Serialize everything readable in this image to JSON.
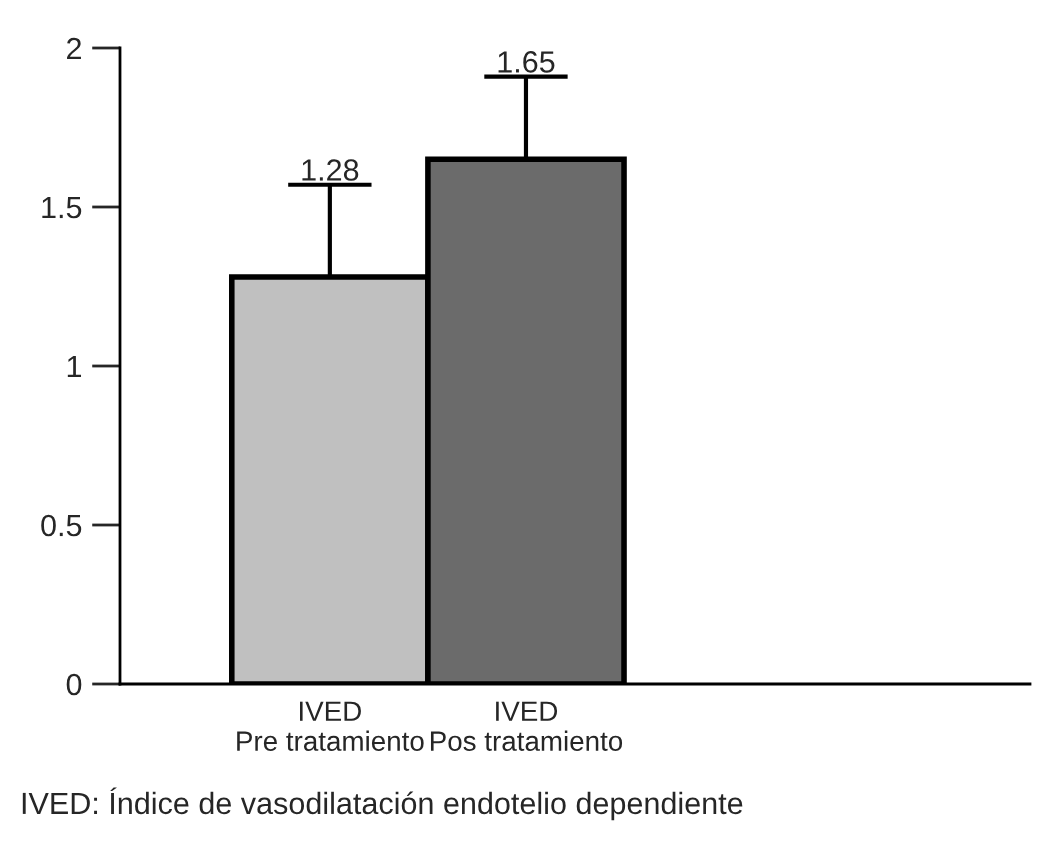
{
  "chart_data": {
    "type": "bar",
    "categories": [
      "IVED\nPre tratamiento",
      "IVED\nPos tratamiento"
    ],
    "values": [
      1.28,
      1.65
    ],
    "colors": [
      "#c0c0c0",
      "#6b6b6b"
    ],
    "errors": [
      [
        1.28,
        1.57
      ],
      [
        1.65,
        1.91
      ]
    ],
    "data_labels": true,
    "ylim": [
      0,
      2
    ],
    "yticks": [
      0,
      0.5,
      1,
      1.5,
      2
    ],
    "grid": false,
    "legend": false,
    "annotations": [
      "IVED: Índice de vasodilatación endotelio dependiente"
    ]
  }
}
